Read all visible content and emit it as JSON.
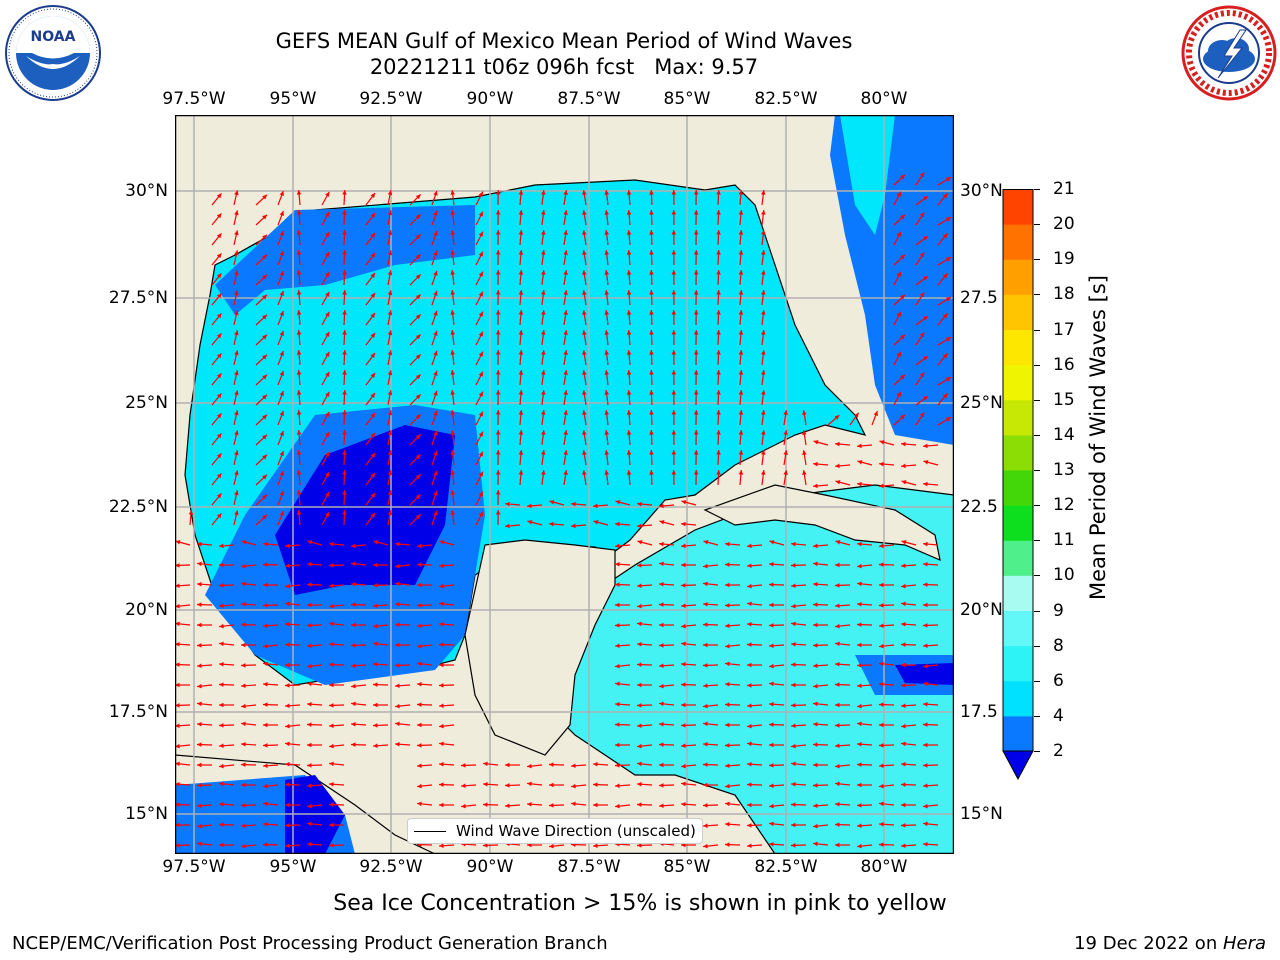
{
  "title": {
    "line1": "GEFS MEAN Gulf of Mexico Mean Period of Wind Waves",
    "line2": "20221211 t06z 096h fcst   Max: 9.57"
  },
  "logos": {
    "left_icon": "noaa-logo",
    "left_text": "NOAA",
    "right_icon": "national-weather-service-logo"
  },
  "map": {
    "x_ticks": [
      "97.5°W",
      "95°W",
      "92.5°W",
      "90°W",
      "87.5°W",
      "85°W",
      "82.5°W",
      "80°W"
    ],
    "y_ticks": [
      "30°N",
      "27.5°N",
      "25°N",
      "22.5°N",
      "20°N",
      "17.5°N",
      "15°N"
    ],
    "y_ticks_right": [
      "30°N",
      "27.5",
      "25°N",
      "22.5",
      "20°N",
      "17.5",
      "15°N"
    ],
    "legend": "Wind Wave Direction (unscaled)",
    "land_color": "#efecdc",
    "arrow_color": "#ff0000"
  },
  "colorbar": {
    "label": "Mean Period of Wind Waves [s]",
    "ticks": [
      "2",
      "4",
      "6",
      "8",
      "9",
      "10",
      "11",
      "12",
      "13",
      "14",
      "15",
      "16",
      "17",
      "18",
      "19",
      "20",
      "21"
    ],
    "colors": [
      "#0a78ff",
      "#00e1ff",
      "#2ef3f6",
      "#62f8f8",
      "#a8fbf0",
      "#4ff08c",
      "#0dde1d",
      "#43d70a",
      "#8cdc06",
      "#c7e804",
      "#eff500",
      "#fde600",
      "#ffc500",
      "#ff9f00",
      "#ff7200",
      "#ff4400",
      "#ff0f00"
    ],
    "extend_color": "#0000e8"
  },
  "footer": {
    "note": "Sea Ice Concentration > 15% is shown in pink to yellow",
    "left": "NCEP/EMC/Verification Post Processing Product Generation Branch",
    "right_prefix": "19 Dec 2022 on ",
    "right_host": "Hera"
  }
}
